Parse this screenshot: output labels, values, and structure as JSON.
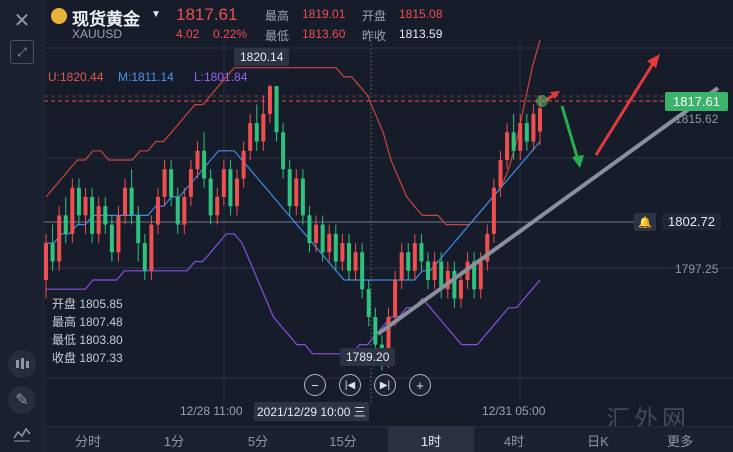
{
  "header": {
    "name": "现货黄金",
    "code": "XAUUSD",
    "price": "1817.61",
    "change": "4.02",
    "change_pct": "0.22%",
    "high_label": "最高",
    "high": "1819.01",
    "open_label": "开盘",
    "open": "1815.08",
    "low_label": "最低",
    "low": "1813.60",
    "prev_label": "昨收",
    "prev": "1813.59"
  },
  "indicators": {
    "u": "U:1820.44",
    "m": "M:1811.14",
    "l": "L:1801.84"
  },
  "price_tags": {
    "current": "1817.61",
    "level_1815": "1815.62",
    "alert": "1802.72",
    "level_1797": "1797.25",
    "peak": "1820.14",
    "trough": "1789.20"
  },
  "ohlc_panel": {
    "open": "开盘 1805.85",
    "high": "最高 1807.48",
    "low": "最低 1803.80",
    "close": "收盘 1807.33"
  },
  "x_axis": {
    "left": "12/28 11:00",
    "crosshair": "2021/12/29 10:00 三",
    "right": "12/31 05:00"
  },
  "tabs": [
    {
      "label": "分时"
    },
    {
      "label": "1分"
    },
    {
      "label": "5分"
    },
    {
      "label": "15分"
    },
    {
      "label": "1时"
    },
    {
      "label": "4时"
    },
    {
      "label": "日K"
    },
    {
      "label": "更多"
    }
  ],
  "watermark": "汇外网",
  "colors": {
    "up": "#ee4f4f",
    "down": "#2ec27e",
    "upper_band": "#c9463c",
    "middle_band": "#3d8ce8",
    "lower_band": "#8a4fe0",
    "trend_line": "#8a8f99"
  },
  "chart_data": {
    "type": "candlestick",
    "indicator": "bollinger",
    "ylim": [
      1786,
      1825
    ],
    "candles": [
      [
        1799,
        1803,
        1797,
        1804
      ],
      [
        1803,
        1801,
        1800,
        1805
      ],
      [
        1801,
        1806,
        1800,
        1807
      ],
      [
        1806,
        1804,
        1803,
        1808
      ],
      [
        1804,
        1809,
        1803,
        1810
      ],
      [
        1809,
        1806,
        1805,
        1810
      ],
      [
        1806,
        1808,
        1804,
        1809
      ],
      [
        1808,
        1804,
        1803,
        1809
      ],
      [
        1804,
        1807,
        1803,
        1808
      ],
      [
        1807,
        1805,
        1804,
        1808
      ],
      [
        1805,
        1802,
        1801,
        1806
      ],
      [
        1802,
        1806,
        1801,
        1807
      ],
      [
        1806,
        1809,
        1805,
        1810
      ],
      [
        1809,
        1806,
        1805,
        1811
      ],
      [
        1806,
        1803,
        1801,
        1807
      ],
      [
        1803,
        1800,
        1799,
        1804
      ],
      [
        1800,
        1805,
        1799,
        1806
      ],
      [
        1805,
        1808,
        1804,
        1809
      ],
      [
        1808,
        1811,
        1807,
        1812
      ],
      [
        1811,
        1808,
        1807,
        1812
      ],
      [
        1808,
        1805,
        1804,
        1809
      ],
      [
        1805,
        1808,
        1804,
        1809
      ],
      [
        1808,
        1811,
        1807,
        1812
      ],
      [
        1811,
        1813,
        1810,
        1814
      ],
      [
        1813,
        1810,
        1809,
        1815
      ],
      [
        1810,
        1806,
        1805,
        1811
      ],
      [
        1806,
        1808,
        1805,
        1809
      ],
      [
        1808,
        1811,
        1807,
        1812
      ],
      [
        1811,
        1807,
        1806,
        1812
      ],
      [
        1807,
        1810,
        1806,
        1811
      ],
      [
        1810,
        1813,
        1809,
        1814
      ],
      [
        1813,
        1816,
        1812,
        1817
      ],
      [
        1816,
        1814,
        1813,
        1818
      ],
      [
        1814,
        1817,
        1813,
        1819
      ],
      [
        1817,
        1820,
        1816,
        1820.14
      ],
      [
        1820,
        1815,
        1814,
        1820
      ],
      [
        1815,
        1811,
        1810,
        1816
      ],
      [
        1811,
        1807,
        1806,
        1812
      ],
      [
        1807,
        1810,
        1806,
        1811
      ],
      [
        1810,
        1806,
        1805,
        1811
      ],
      [
        1806,
        1803,
        1802,
        1807
      ],
      [
        1803,
        1805,
        1802,
        1806
      ],
      [
        1805,
        1802,
        1801,
        1806
      ],
      [
        1802,
        1804,
        1801,
        1805
      ],
      [
        1804,
        1801,
        1800,
        1805
      ],
      [
        1801,
        1803,
        1800,
        1804
      ],
      [
        1803,
        1800,
        1799,
        1804
      ],
      [
        1800,
        1802,
        1799,
        1803
      ],
      [
        1802,
        1798,
        1797,
        1803
      ],
      [
        1798,
        1795,
        1794,
        1799
      ],
      [
        1795,
        1792,
        1791,
        1796
      ],
      [
        1792,
        1790,
        1789.2,
        1793
      ],
      [
        1790,
        1795,
        1789.5,
        1796
      ],
      [
        1795,
        1799,
        1794,
        1800
      ],
      [
        1799,
        1802,
        1798,
        1803
      ],
      [
        1802,
        1800,
        1799,
        1803
      ],
      [
        1800,
        1803,
        1799,
        1804
      ],
      [
        1803,
        1801,
        1800,
        1804
      ],
      [
        1801,
        1799,
        1798,
        1802
      ],
      [
        1799,
        1801,
        1798,
        1802
      ],
      [
        1801,
        1798,
        1797,
        1802
      ],
      [
        1798,
        1800,
        1797,
        1801
      ],
      [
        1800,
        1797,
        1796,
        1801
      ],
      [
        1797,
        1799,
        1796,
        1800
      ],
      [
        1799,
        1801,
        1798,
        1802
      ],
      [
        1801,
        1798,
        1797,
        1802
      ],
      [
        1798,
        1801,
        1797,
        1802
      ],
      [
        1801,
        1804,
        1800,
        1805
      ],
      [
        1804,
        1809,
        1803,
        1810
      ],
      [
        1809,
        1812,
        1808,
        1813
      ],
      [
        1812,
        1815,
        1811,
        1816
      ],
      [
        1815,
        1813,
        1812,
        1817
      ],
      [
        1813,
        1816,
        1812,
        1817
      ],
      [
        1816,
        1814,
        1813,
        1817
      ],
      [
        1814,
        1817,
        1813,
        1818
      ],
      [
        1815.08,
        1817.61,
        1813.6,
        1819.01
      ]
    ],
    "upper_band": [
      1808,
      1809,
      1810,
      1811,
      1812,
      1812,
      1813,
      1813,
      1812,
      1812,
      1812,
      1812,
      1813,
      1813,
      1814,
      1814,
      1815,
      1816,
      1817,
      1818,
      1818,
      1819,
      1820,
      1821,
      1822,
      1822,
      1822,
      1822,
      1822,
      1822,
      1822,
      1822,
      1822,
      1822,
      1822,
      1822,
      1822,
      1822,
      1821,
      1821,
      1820,
      1819,
      1817,
      1815,
      1812,
      1810,
      1808,
      1807,
      1806,
      1806,
      1806,
      1805,
      1805,
      1805,
      1805,
      1806,
      1807,
      1808,
      1809,
      1811,
      1814,
      1818,
      1822,
      1825
    ],
    "middle_band": [
      1803,
      1803,
      1804,
      1804,
      1805,
      1805,
      1806,
      1806,
      1806,
      1806,
      1806,
      1806,
      1806,
      1806,
      1807,
      1807,
      1808,
      1808,
      1809,
      1810,
      1811,
      1812,
      1813,
      1813,
      1813,
      1812,
      1811,
      1810,
      1809,
      1808,
      1807,
      1806,
      1805,
      1804,
      1803,
      1802,
      1801,
      1800,
      1799,
      1799,
      1799,
      1799,
      1799,
      1799,
      1799,
      1799,
      1799,
      1799,
      1800,
      1800,
      1801,
      1802,
      1803,
      1804,
      1805,
      1806,
      1807,
      1808,
      1809,
      1810,
      1811,
      1812,
      1813,
      1814
    ],
    "lower_band": [
      1798,
      1798,
      1798,
      1798,
      1798,
      1798,
      1799,
      1799,
      1799,
      1799,
      1800,
      1800,
      1800,
      1800,
      1800,
      1800,
      1800,
      1800,
      1800,
      1801,
      1801,
      1802,
      1803,
      1804,
      1804,
      1803,
      1801,
      1799,
      1797,
      1795,
      1794,
      1793,
      1792,
      1792,
      1791,
      1791,
      1791,
      1791,
      1791,
      1791,
      1792,
      1792,
      1793,
      1794,
      1795,
      1795,
      1796,
      1796,
      1797,
      1796,
      1795,
      1794,
      1793,
      1792,
      1792,
      1792,
      1793,
      1794,
      1795,
      1796,
      1796,
      1797,
      1798,
      1799
    ]
  }
}
